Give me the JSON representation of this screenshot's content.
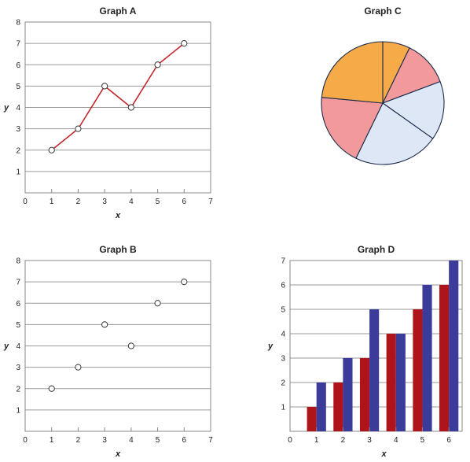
{
  "colors": {
    "line": "#c1272d",
    "grid": "#9a9a9a",
    "frame": "#888888",
    "marker_fill": "#ffffff",
    "marker_stroke": "#333333",
    "bar_red": "#b0141b",
    "bar_blue": "#3b3b9a",
    "pie_orange": "#f7aa48",
    "pie_pink": "#f29a9b",
    "pie_lightblue": "#dde7f5",
    "pie_edge": "#1a2a4a"
  },
  "chart_data": [
    {
      "id": "A",
      "type": "line",
      "title": "Graph A",
      "xlabel": "x",
      "ylabel": "y",
      "x": [
        1,
        2,
        3,
        4,
        5,
        6
      ],
      "y": [
        2,
        3,
        5,
        4,
        6,
        7
      ],
      "xlim": [
        0,
        7
      ],
      "ylim": [
        0,
        8
      ],
      "xticks": [
        "0",
        "1",
        "2",
        "3",
        "4",
        "5",
        "6",
        "7"
      ],
      "yticks": [
        "1",
        "2",
        "3",
        "4",
        "5",
        "6",
        "7",
        "8"
      ],
      "grid": "horizontal"
    },
    {
      "id": "B",
      "type": "scatter",
      "title": "Graph B",
      "xlabel": "x",
      "ylabel": "y",
      "x": [
        1,
        2,
        3,
        4,
        5,
        6
      ],
      "y": [
        2,
        3,
        5,
        4,
        6,
        7
      ],
      "xlim": [
        0,
        7
      ],
      "ylim": [
        0,
        8
      ],
      "xticks": [
        "0",
        "1",
        "2",
        "3",
        "4",
        "5",
        "6",
        "7"
      ],
      "yticks": [
        "1",
        "2",
        "3",
        "4",
        "5",
        "6",
        "7",
        "8"
      ],
      "grid": "horizontal"
    },
    {
      "id": "C",
      "type": "pie",
      "title": "Graph C",
      "slices": [
        {
          "value": 7.2,
          "color": "pie_orange"
        },
        {
          "value": 12.1,
          "color": "pie_pink"
        },
        {
          "value": 15.5,
          "color": "pie_lightblue"
        },
        {
          "value": 22.4,
          "color": "pie_lightblue"
        },
        {
          "value": 19.3,
          "color": "pie_pink"
        },
        {
          "value": 23.5,
          "color": "pie_orange"
        }
      ]
    },
    {
      "id": "D",
      "type": "bar",
      "title": "Graph D",
      "xlabel": "x",
      "ylabel": "y",
      "categories": [
        "1",
        "2",
        "3",
        "4",
        "5",
        "6"
      ],
      "series": [
        {
          "color": "bar_red",
          "values": [
            1,
            2,
            3,
            4,
            5,
            6
          ]
        },
        {
          "color": "bar_blue",
          "values": [
            2,
            3,
            5,
            4,
            6,
            7
          ]
        }
      ],
      "xticks": [
        "0",
        "1",
        "2",
        "3",
        "4",
        "5",
        "6"
      ],
      "yticks": [
        "1",
        "2",
        "3",
        "4",
        "5",
        "6",
        "7"
      ],
      "ylim": [
        0,
        7
      ],
      "grid": "horizontal"
    }
  ]
}
